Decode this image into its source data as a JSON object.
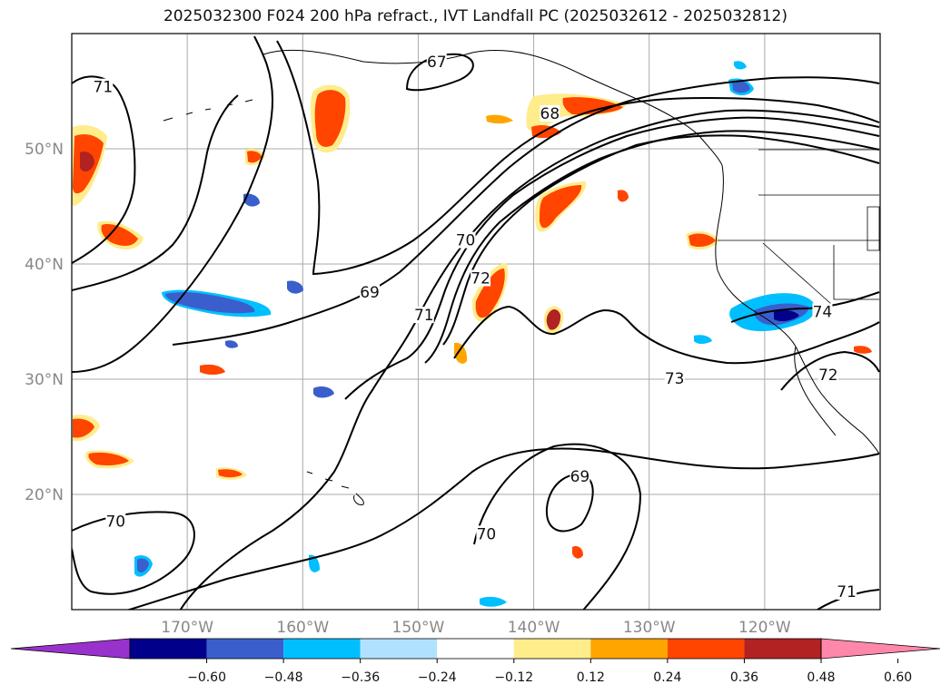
{
  "title": "2025032300 F024 200 hPa refract., IVT Landfall PC (2025032612 - 2025032812)",
  "map": {
    "lon_range": [
      -180,
      -110
    ],
    "lat_range": [
      10,
      60
    ],
    "lat_ticks": [
      {
        "value": 50,
        "label": "50°N"
      },
      {
        "value": 40,
        "label": "40°N"
      },
      {
        "value": 30,
        "label": "30°N"
      },
      {
        "value": 20,
        "label": "20°N"
      }
    ],
    "lon_ticks": [
      {
        "value": -170,
        "label": "170°W"
      },
      {
        "value": -160,
        "label": "160°W"
      },
      {
        "value": -150,
        "label": "150°W"
      },
      {
        "value": -140,
        "label": "140°W"
      },
      {
        "value": -130,
        "label": "130°W"
      },
      {
        "value": -120,
        "label": "120°W"
      }
    ],
    "grid": true,
    "contour_labels": [
      {
        "text": "67",
        "lon": -148.4,
        "lat": 57.5
      },
      {
        "text": "71",
        "lon": -177.3,
        "lat": 55.3
      },
      {
        "text": "68",
        "lon": -138.6,
        "lat": 53.0
      },
      {
        "text": "70",
        "lon": -145.9,
        "lat": 42.0
      },
      {
        "text": "72",
        "lon": -144.6,
        "lat": 38.7
      },
      {
        "text": "69",
        "lon": -154.2,
        "lat": 37.5
      },
      {
        "text": "71",
        "lon": -149.5,
        "lat": 35.5
      },
      {
        "text": "73",
        "lon": -127.8,
        "lat": 30.0
      },
      {
        "text": "72",
        "lon": -114.5,
        "lat": 30.3
      },
      {
        "text": "74",
        "lon": -115.0,
        "lat": 35.8
      },
      {
        "text": "69",
        "lon": -136.0,
        "lat": 21.5
      },
      {
        "text": "70",
        "lon": -144.1,
        "lat": 16.5
      },
      {
        "text": "70",
        "lon": -176.2,
        "lat": 17.6
      },
      {
        "text": "71",
        "lon": -112.9,
        "lat": 11.5
      }
    ]
  },
  "colorbar": {
    "colors": [
      "#9932cc",
      "#00008b",
      "#3a5fcd",
      "#00bfff",
      "#b0e2ff",
      "#ffffff",
      "#ffec8b",
      "#ffa500",
      "#ff4500",
      "#b22222",
      "#ff88aa"
    ],
    "tick_labels": [
      "−0.60",
      "−0.48",
      "−0.36",
      "−0.24",
      "−0.12",
      "0.12",
      "0.24",
      "0.36",
      "0.48",
      "0.60"
    ]
  }
}
